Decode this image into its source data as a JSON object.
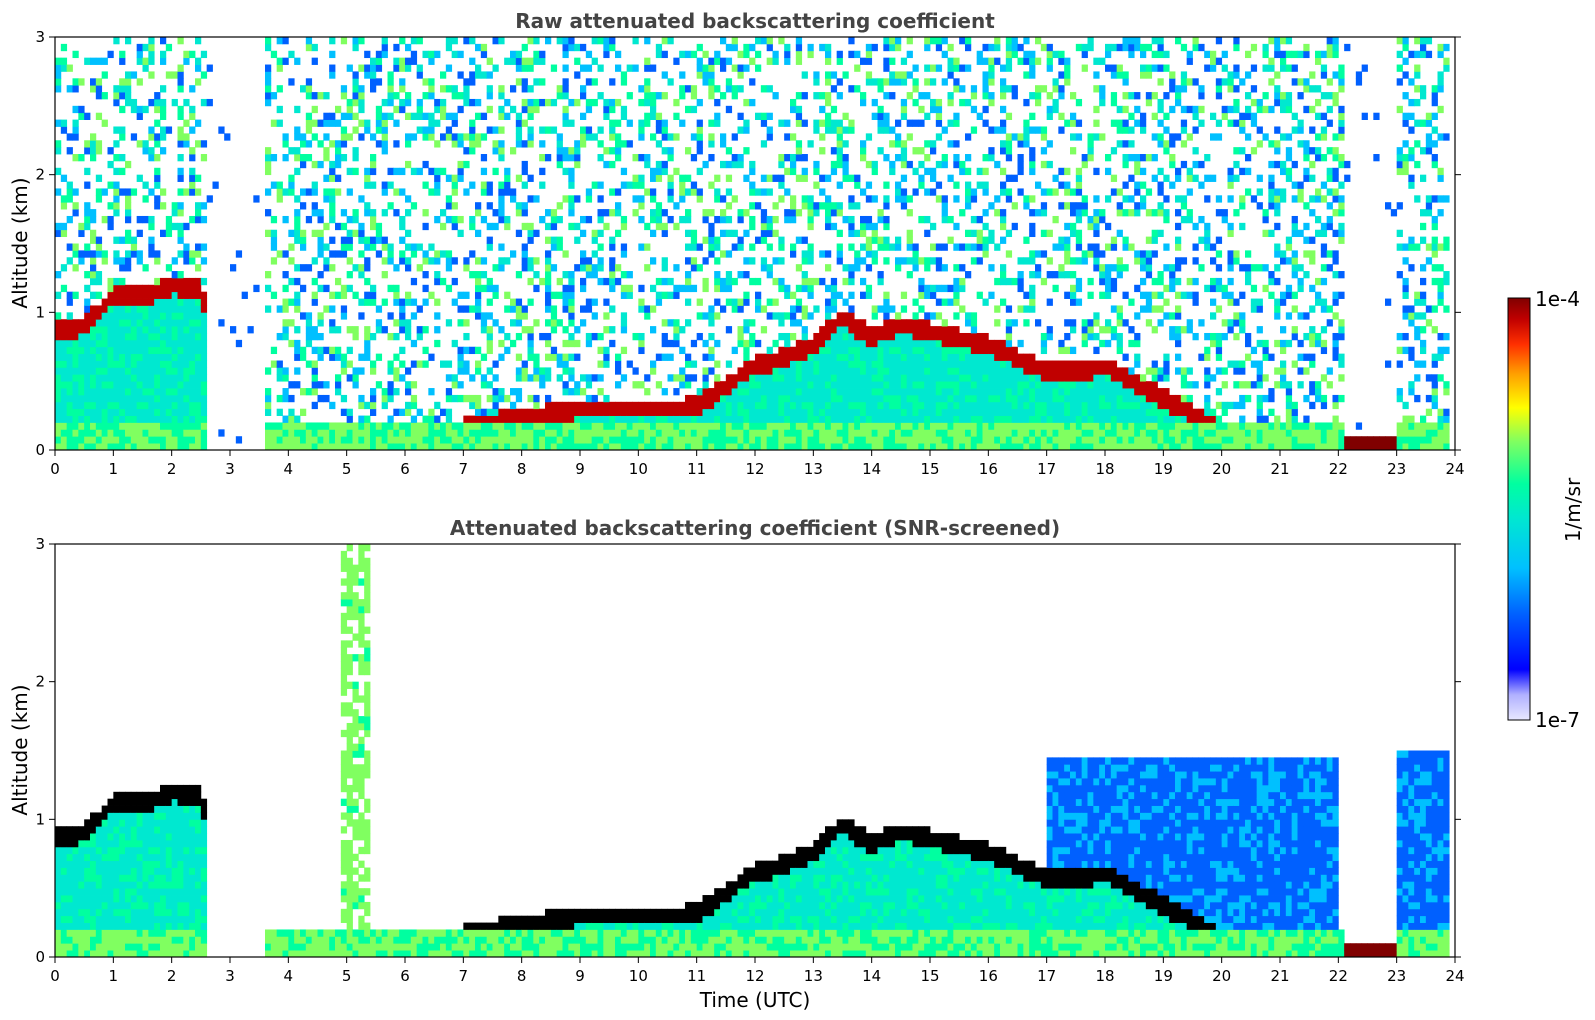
{
  "chart_data": [
    {
      "type": "heatmap",
      "title": "Raw attenuated backscattering coefficient",
      "xlabel": "",
      "ylabel": "Altitude (km)",
      "xlim": [
        0,
        24
      ],
      "ylim": [
        0,
        3
      ],
      "xticks": [
        "0",
        "1",
        "2",
        "3",
        "4",
        "5",
        "6",
        "7",
        "8",
        "9",
        "10",
        "11",
        "12",
        "13",
        "14",
        "15",
        "16",
        "17",
        "18",
        "19",
        "20",
        "21",
        "22",
        "23",
        "24"
      ],
      "yticks": [
        "0",
        "1",
        "2",
        "3"
      ],
      "cloud_base_km": [
        [
          0,
          0.85
        ],
        [
          0.5,
          0.88
        ],
        [
          1,
          1.1
        ],
        [
          1.5,
          1.1
        ],
        [
          2,
          1.18
        ],
        [
          2.5,
          1.15
        ],
        [
          3,
          0.12
        ],
        [
          4,
          0.08
        ],
        [
          5,
          0.08
        ],
        [
          6,
          0.08
        ],
        [
          6.7,
          0.1
        ],
        [
          7,
          0.15
        ],
        [
          8,
          0.22
        ],
        [
          9,
          0.28
        ],
        [
          10,
          0.28
        ],
        [
          11,
          0.3
        ],
        [
          11.5,
          0.45
        ],
        [
          12,
          0.6
        ],
        [
          12.5,
          0.65
        ],
        [
          13,
          0.75
        ],
        [
          13.5,
          0.95
        ],
        [
          14,
          0.8
        ],
        [
          14.5,
          0.9
        ],
        [
          15,
          0.85
        ],
        [
          15.5,
          0.8
        ],
        [
          16,
          0.75
        ],
        [
          16.5,
          0.65
        ],
        [
          17,
          0.55
        ],
        [
          17.5,
          0.55
        ],
        [
          18,
          0.6
        ],
        [
          20,
          0.12
        ],
        [
          22.5,
          0.08
        ],
        [
          23,
          0.08
        ]
      ]
    },
    {
      "type": "heatmap",
      "title": "Attenuated backscattering coefficient (SNR-screened)",
      "xlabel": "Time (UTC)",
      "ylabel": "Altitude (km)",
      "xlim": [
        0,
        24
      ],
      "ylim": [
        0,
        3
      ],
      "xticks": [
        "0",
        "1",
        "2",
        "3",
        "4",
        "5",
        "6",
        "7",
        "8",
        "9",
        "10",
        "11",
        "12",
        "13",
        "14",
        "15",
        "16",
        "17",
        "18",
        "19",
        "20",
        "21",
        "22",
        "23",
        "24"
      ],
      "yticks": [
        "0",
        "1",
        "2",
        "3"
      ]
    }
  ],
  "colorbar": {
    "label": "1/m/sr",
    "max_label": "1e-4",
    "min_label": "1e-7",
    "colors": [
      "#e8e8ff",
      "#b0b0ff",
      "#0000ff",
      "#0060ff",
      "#00c0ff",
      "#00e8d0",
      "#00ffa0",
      "#80ff60",
      "#ffff00",
      "#ffa000",
      "#ff3000",
      "#c00000",
      "#800000"
    ]
  }
}
